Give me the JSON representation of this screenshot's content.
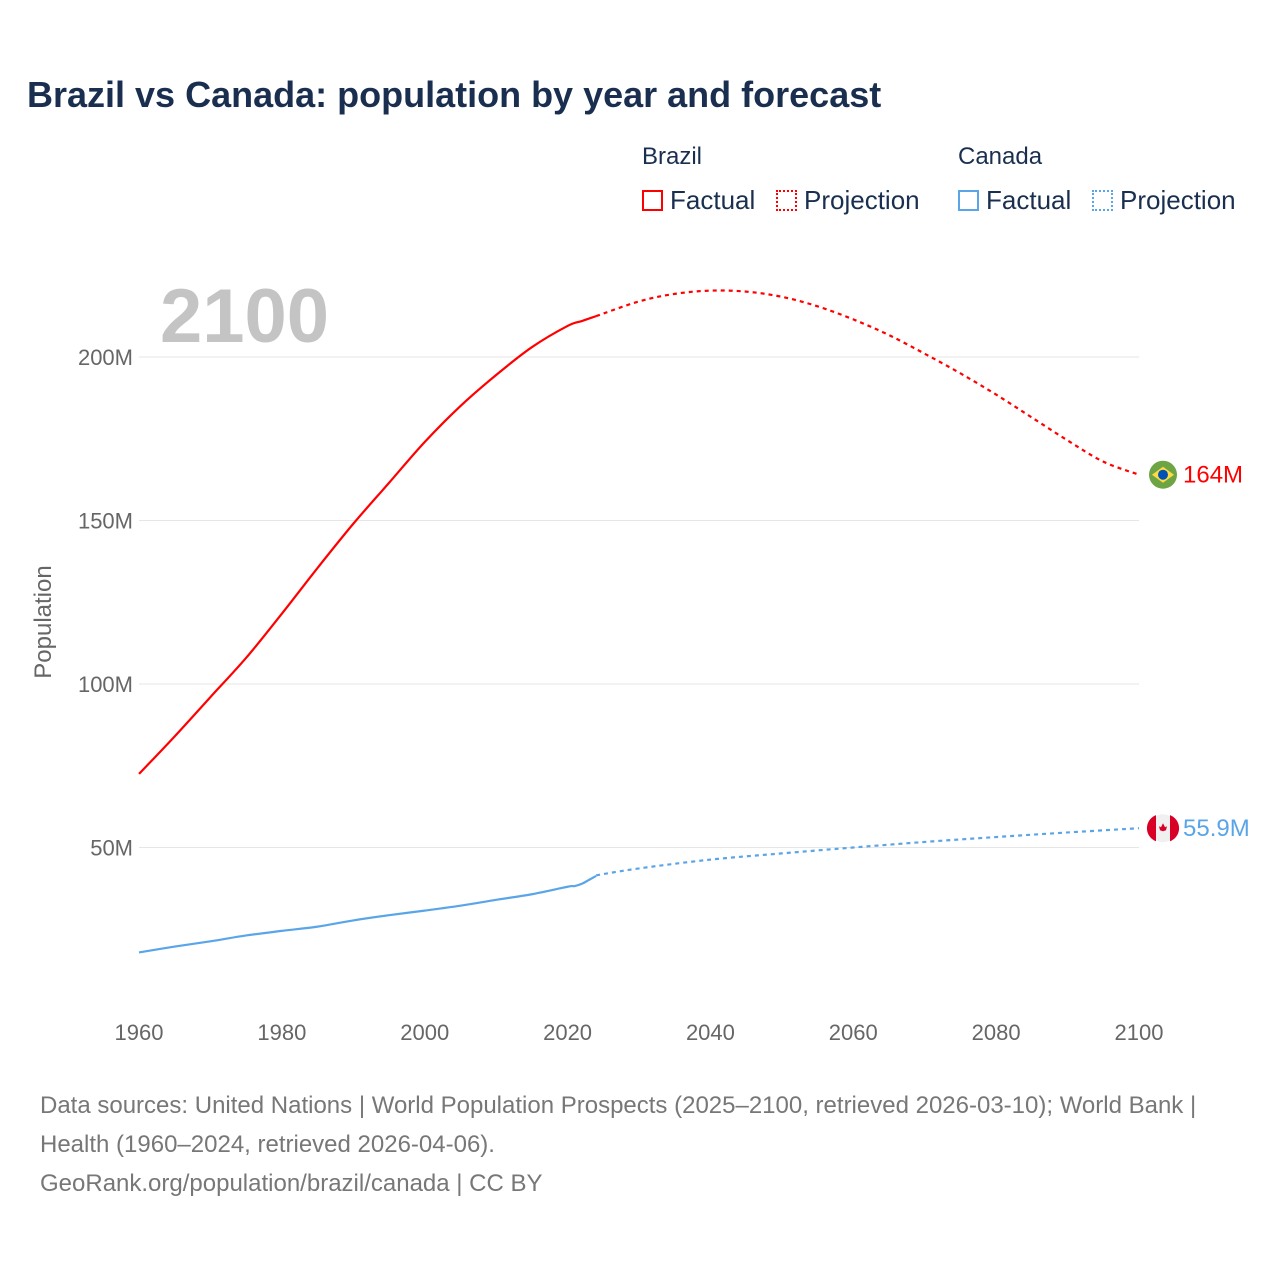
{
  "title": "Brazil vs Canada: population by year and forecast",
  "legend": {
    "groups": [
      {
        "name": "Brazil",
        "factual": "Factual",
        "projection": "Projection",
        "color": "#ff0000"
      },
      {
        "name": "Canada",
        "factual": "Factual",
        "projection": "Projection",
        "color": "#5aa5e8"
      }
    ]
  },
  "year_overlay": "2100",
  "footer": {
    "sources": "Data sources: United Nations | World Population Prospects (2025–2100, retrieved 2026-03-10); World Bank | Health (1960–2024, retrieved 2026-04-06).",
    "credit": "GeoRank.org/population/brazil/canada | CC BY"
  },
  "chart_data": {
    "type": "line",
    "title": "Brazil vs Canada: population by year and forecast",
    "xlabel": "",
    "ylabel": "Population",
    "xlim": [
      1960,
      2100
    ],
    "ylim": [
      0,
      220
    ],
    "y_unit": "millions",
    "xticks": [
      "1960",
      "1980",
      "2000",
      "2020",
      "2040",
      "2060",
      "2080",
      "2100"
    ],
    "xtick_values": [
      1960,
      1980,
      2000,
      2020,
      2040,
      2060,
      2080,
      2100
    ],
    "yticks": [
      "50M",
      "100M",
      "150M",
      "200M"
    ],
    "ytick_values": [
      50,
      100,
      150,
      200
    ],
    "grid": "horizontal",
    "legend_position": "top-right",
    "series": [
      {
        "name": "Brazil",
        "color": "#ff0000",
        "end_label": "164M",
        "flag": "brazil-flag",
        "factual": {
          "x": [
            1960,
            1965,
            1970,
            1975,
            1980,
            1985,
            1990,
            1995,
            2000,
            2005,
            2010,
            2015,
            2020,
            2022,
            2024
          ],
          "y": [
            72.5,
            84,
            96,
            108,
            121.5,
            135.5,
            149,
            161.5,
            174,
            185,
            194.5,
            203,
            209.5,
            211,
            212.5
          ]
        },
        "projection": {
          "x": [
            2024,
            2030,
            2035,
            2040,
            2045,
            2050,
            2055,
            2060,
            2065,
            2070,
            2075,
            2080,
            2085,
            2090,
            2095,
            2100
          ],
          "y": [
            212.5,
            217,
            219.3,
            220.3,
            220,
            218.4,
            215.5,
            211.5,
            206.7,
            201,
            195,
            188.5,
            181.5,
            174.5,
            168,
            164
          ]
        }
      },
      {
        "name": "Canada",
        "color": "#5aa5e8",
        "end_label": "55.9M",
        "flag": "canada-flag",
        "factual": {
          "x": [
            1960,
            1965,
            1970,
            1975,
            1980,
            1985,
            1990,
            1995,
            2000,
            2005,
            2010,
            2015,
            2020,
            2021,
            2022,
            2023,
            2024
          ],
          "y": [
            17.9,
            19.7,
            21.3,
            23.1,
            24.5,
            25.8,
            27.7,
            29.3,
            30.7,
            32.2,
            34,
            35.7,
            38,
            38.2,
            38.9,
            40.1,
            41.3
          ]
        },
        "projection": {
          "x": [
            2024,
            2030,
            2040,
            2050,
            2060,
            2070,
            2080,
            2090,
            2100
          ],
          "y": [
            41.5,
            43.6,
            46.3,
            48.2,
            50,
            51.7,
            53.2,
            54.6,
            55.9
          ]
        }
      }
    ]
  }
}
